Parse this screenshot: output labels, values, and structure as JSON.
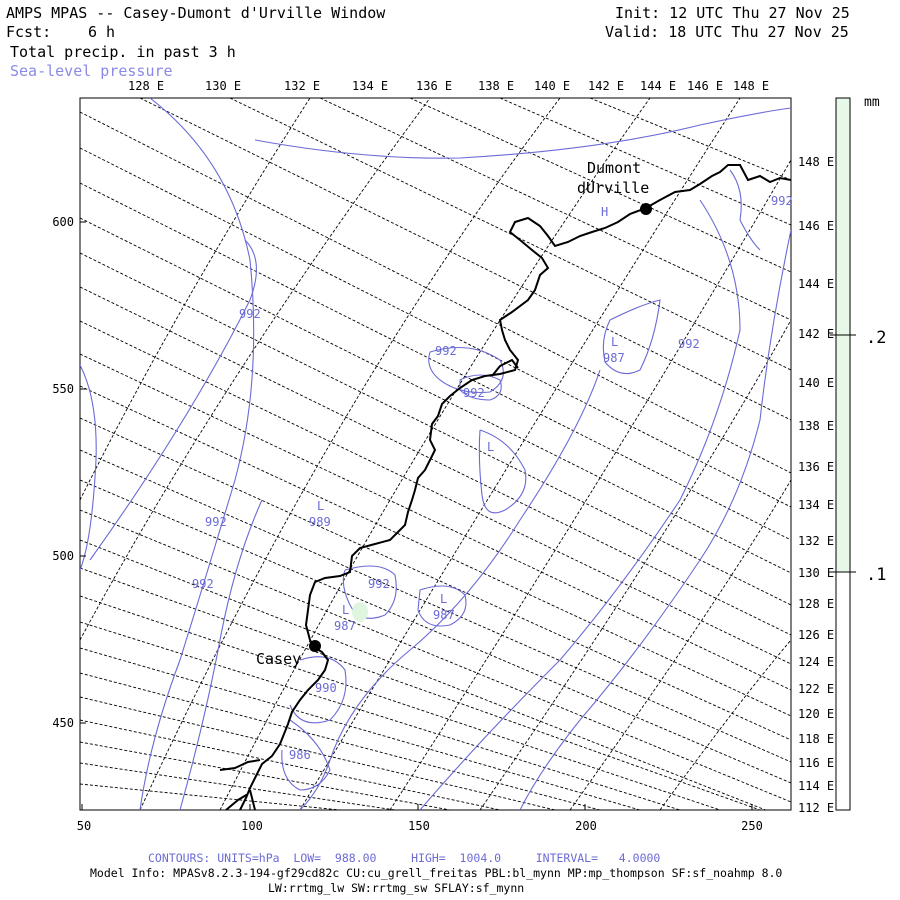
{
  "header": {
    "title": "AMPS MPAS -- Casey-Dumont d'Urville Window",
    "fcst_label": "Fcst:",
    "fcst_value": "6 h",
    "field": "Total precip. in past 3 h",
    "overlay": "Sea-level pressure",
    "init": "Init: 12 UTC Thu 27 Nov 25",
    "valid": "Valid: 18 UTC Thu 27 Nov 25"
  },
  "map": {
    "top_lon_labels": [
      "128 E",
      "130 E",
      "132 E",
      "134 E",
      "136 E",
      "138 E",
      "140 E",
      "142 E",
      "144 E",
      "146 E",
      "148 E"
    ],
    "right_lon_labels": [
      "148 E",
      "146 E",
      "144 E",
      "142 E",
      "140 E",
      "138 E",
      "136 E",
      "134 E",
      "132 E",
      "130 E",
      "128 E",
      "126 E",
      "124 E",
      "122 E",
      "120 E",
      "118 E",
      "116 E",
      "114 E",
      "112 E"
    ],
    "x_ticks": [
      "50",
      "100",
      "150",
      "200",
      "250"
    ],
    "y_ticks": [
      "600",
      "550",
      "500",
      "450"
    ],
    "stations": [
      {
        "name_lines": [
          "Dumont",
          "dUrville"
        ]
      },
      {
        "name_lines": [
          "Casey"
        ]
      }
    ],
    "pressure_labels": [
      "992",
      "992",
      "992",
      "992",
      "992",
      "992",
      "992",
      "992",
      "989",
      "987",
      "987",
      "987",
      "986",
      "990"
    ],
    "center_marks": [
      "H",
      "L",
      "L",
      "L",
      "L",
      "L"
    ],
    "line_color": "#6b6bd6"
  },
  "colorbar": {
    "unit": "mm",
    "labels": [
      ".2",
      ".1"
    ],
    "fill_color": "#e8f8e8"
  },
  "footer": {
    "contours": "CONTOURS: UNITS=hPa  LOW=  988.00     HIGH=  1004.0     INTERVAL=   4.0000",
    "model_info": "Model Info: MPASv8.2.3-194-gf29cd82c CU:cu_grell_freitas PBL:bl_mynn MP:mp_thompson SF:sf_noahmp 8.0",
    "model_info2": "LW:rrtmg_lw SW:rrtmg_sw SFLAY:sf_mynn"
  }
}
